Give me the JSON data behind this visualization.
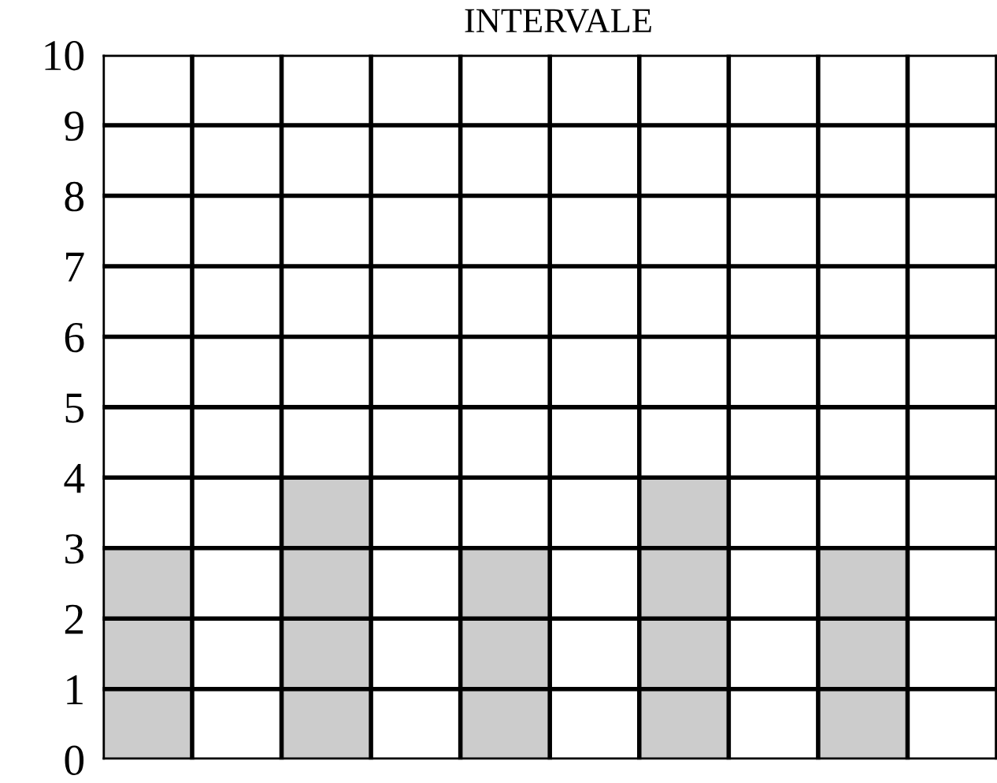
{
  "chart_data": {
    "type": "bar",
    "title": "INTERVALE",
    "categories": [
      null,
      null,
      null,
      null,
      null,
      null,
      null,
      null,
      null,
      null
    ],
    "values": [
      3,
      0,
      4,
      0,
      3,
      0,
      4,
      0,
      3,
      0
    ],
    "color": "#cccccc",
    "ylim": [
      0,
      10
    ],
    "yticks": [
      0,
      1,
      2,
      3,
      4,
      5,
      6,
      7,
      8,
      9,
      10
    ],
    "grid": true
  }
}
